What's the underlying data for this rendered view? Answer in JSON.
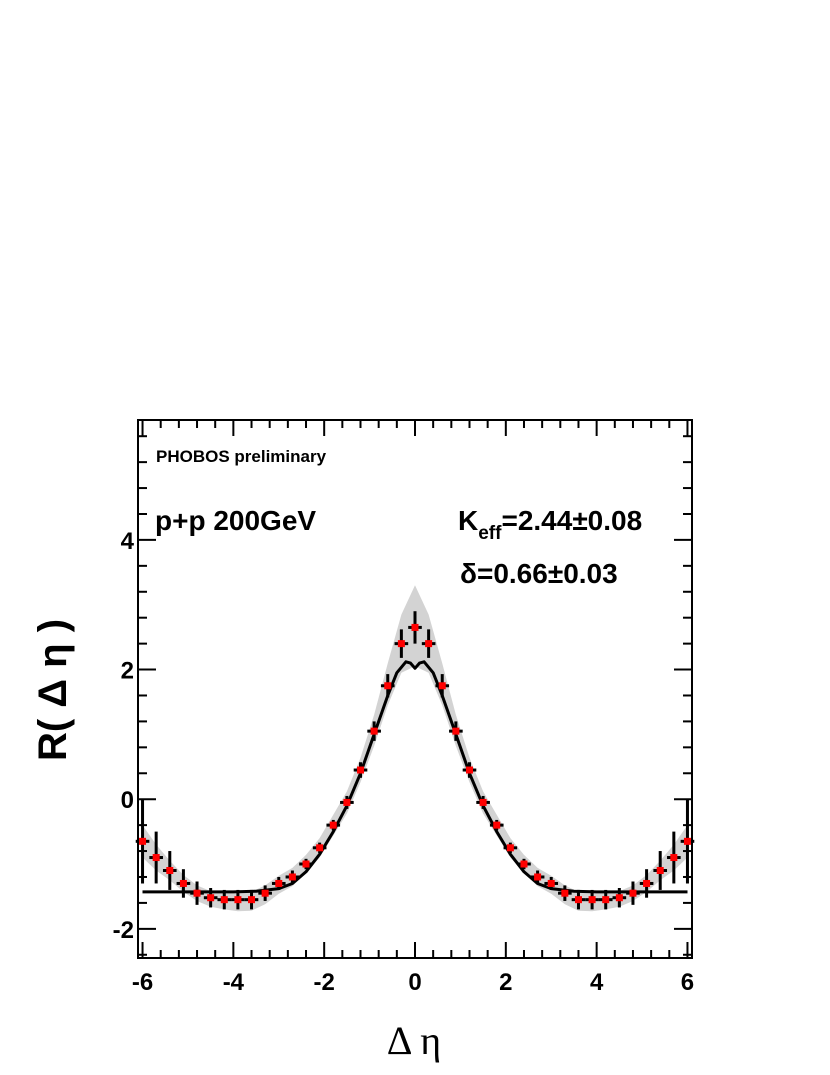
{
  "chart_data": {
    "type": "scatter",
    "xlabel": "Δ η",
    "ylabel": "R( Δ η )",
    "xlim": [
      -6.1,
      6.1
    ],
    "ylim": [
      -2.45,
      5.85
    ],
    "x_ticks": [
      -6,
      -4,
      -2,
      0,
      2,
      4,
      6
    ],
    "y_ticks": [
      -2,
      0,
      2,
      4
    ],
    "grid": false,
    "annotations": {
      "experiment": "PHOBOS preliminary",
      "system": "p+p 200GeV",
      "k_main": "K",
      "k_sub": "eff",
      "k_value": "=2.44±0.08",
      "delta": "δ=0.66±0.03"
    },
    "series": [
      {
        "kind": "data_points",
        "x": [
          -6.0,
          -5.7,
          -5.4,
          -5.1,
          -4.8,
          -4.5,
          -4.2,
          -3.9,
          -3.6,
          -3.3,
          -3.0,
          -2.7,
          -2.4,
          -2.1,
          -1.8,
          -1.5,
          -1.2,
          -0.9,
          -0.6,
          -0.3,
          0.0,
          0.3,
          0.6,
          0.9,
          1.2,
          1.5,
          1.8,
          2.1,
          2.4,
          2.7,
          3.0,
          3.3,
          3.6,
          3.9,
          4.2,
          4.5,
          4.8,
          5.1,
          5.4,
          5.7,
          6.0
        ],
        "y": [
          -0.65,
          -0.9,
          -1.1,
          -1.3,
          -1.45,
          -1.52,
          -1.55,
          -1.55,
          -1.55,
          -1.45,
          -1.3,
          -1.2,
          -1.0,
          -0.75,
          -0.4,
          -0.05,
          0.45,
          1.05,
          1.75,
          2.4,
          2.65,
          2.4,
          1.75,
          1.05,
          0.45,
          -0.05,
          -0.4,
          -0.75,
          -1.0,
          -1.2,
          -1.3,
          -1.45,
          -1.55,
          -1.55,
          -1.55,
          -1.52,
          -1.45,
          -1.3,
          -1.1,
          -0.9,
          -0.65
        ],
        "yerr": [
          0.65,
          0.4,
          0.3,
          0.22,
          0.18,
          0.15,
          0.15,
          0.15,
          0.15,
          0.12,
          0.1,
          0.1,
          0.08,
          0.08,
          0.08,
          0.1,
          0.12,
          0.15,
          0.18,
          0.22,
          0.25,
          0.22,
          0.18,
          0.15,
          0.12,
          0.1,
          0.08,
          0.08,
          0.08,
          0.1,
          0.1,
          0.12,
          0.15,
          0.15,
          0.15,
          0.15,
          0.18,
          0.22,
          0.3,
          0.4,
          0.65
        ],
        "xerr": 0.15,
        "color": "#ff0000",
        "errorbar_color": "#000000"
      },
      {
        "kind": "systematic_band",
        "x": [
          -6.0,
          -5.7,
          -5.4,
          -5.1,
          -4.8,
          -4.5,
          -4.2,
          -3.9,
          -3.6,
          -3.3,
          -3.0,
          -2.7,
          -2.4,
          -2.1,
          -1.8,
          -1.5,
          -1.2,
          -0.9,
          -0.6,
          -0.3,
          0.0,
          0.3,
          0.6,
          0.9,
          1.2,
          1.5,
          1.8,
          2.1,
          2.4,
          2.7,
          3.0,
          3.3,
          3.6,
          3.9,
          4.2,
          4.5,
          4.8,
          5.1,
          5.4,
          5.7,
          6.0
        ],
        "upper": [
          -0.4,
          -0.7,
          -0.95,
          -1.17,
          -1.33,
          -1.42,
          -1.45,
          -1.45,
          -1.43,
          -1.33,
          -1.18,
          -1.06,
          -0.86,
          -0.6,
          -0.24,
          0.12,
          0.64,
          1.3,
          2.1,
          2.85,
          3.3,
          2.85,
          2.1,
          1.3,
          0.64,
          0.12,
          -0.24,
          -0.6,
          -0.86,
          -1.06,
          -1.18,
          -1.33,
          -1.43,
          -1.45,
          -1.45,
          -1.42,
          -1.33,
          -1.17,
          -0.95,
          -0.7,
          -0.4
        ],
        "lower": [
          -0.9,
          -1.1,
          -1.25,
          -1.43,
          -1.57,
          -1.66,
          -1.7,
          -1.73,
          -1.72,
          -1.62,
          -1.46,
          -1.34,
          -1.14,
          -0.9,
          -0.56,
          -0.22,
          0.26,
          0.82,
          1.45,
          1.95,
          2.05,
          1.95,
          1.45,
          0.82,
          0.26,
          -0.22,
          -0.56,
          -0.9,
          -1.14,
          -1.34,
          -1.46,
          -1.62,
          -1.72,
          -1.73,
          -1.7,
          -1.66,
          -1.57,
          -1.43,
          -1.25,
          -1.1,
          -0.9
        ],
        "color": "#d3d3d3"
      },
      {
        "kind": "fit_curve",
        "x": [
          -6.0,
          -5.5,
          -5.0,
          -4.5,
          -4.0,
          -3.5,
          -3.0,
          -2.7,
          -2.4,
          -2.1,
          -1.8,
          -1.5,
          -1.2,
          -0.9,
          -0.6,
          -0.4,
          -0.2,
          -0.1,
          0.0,
          0.1,
          0.2,
          0.4,
          0.6,
          0.9,
          1.2,
          1.5,
          1.8,
          2.1,
          2.4,
          2.7,
          3.0,
          3.5,
          4.0,
          4.5,
          5.0,
          5.5,
          6.0
        ],
        "y": [
          -1.43,
          -1.43,
          -1.43,
          -1.43,
          -1.43,
          -1.42,
          -1.38,
          -1.3,
          -1.12,
          -0.85,
          -0.5,
          -0.1,
          0.4,
          1.0,
          1.6,
          1.95,
          2.12,
          2.1,
          2.02,
          2.1,
          2.12,
          1.95,
          1.6,
          1.0,
          0.4,
          -0.1,
          -0.5,
          -0.85,
          -1.12,
          -1.3,
          -1.38,
          -1.42,
          -1.43,
          -1.43,
          -1.43,
          -1.43,
          -1.43
        ],
        "color": "#000000"
      }
    ]
  }
}
